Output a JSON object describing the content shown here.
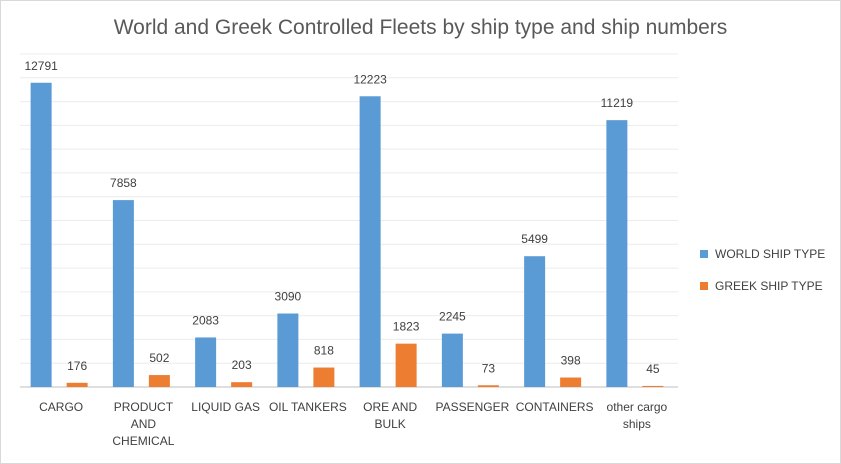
{
  "chart_data": {
    "type": "bar",
    "title": "World and Greek Controlled Fleets by ship type and ship numbers",
    "xlabel": "",
    "ylabel": "",
    "categories": [
      [
        "CARGO"
      ],
      [
        "PRODUCT",
        "AND",
        "CHEMICAL"
      ],
      [
        "LIQUID GAS"
      ],
      [
        "OIL TANKERS"
      ],
      [
        "ORE AND",
        "BULK"
      ],
      [
        "PASSENGER"
      ],
      [
        "CONTAINERS"
      ],
      [
        "other cargo",
        "ships"
      ]
    ],
    "series": [
      {
        "name": "WORLD SHIP TYPE",
        "color": "#5b9bd5",
        "values": [
          12791,
          7858,
          2083,
          3090,
          12223,
          2245,
          5499,
          11219
        ]
      },
      {
        "name": "GREEK SHIP TYPE",
        "color": "#ed7d31",
        "values": [
          176,
          502,
          203,
          818,
          1823,
          73,
          398,
          45
        ]
      }
    ],
    "ylim": [
      0,
      14000
    ],
    "grid": true,
    "legend_position": "right"
  }
}
